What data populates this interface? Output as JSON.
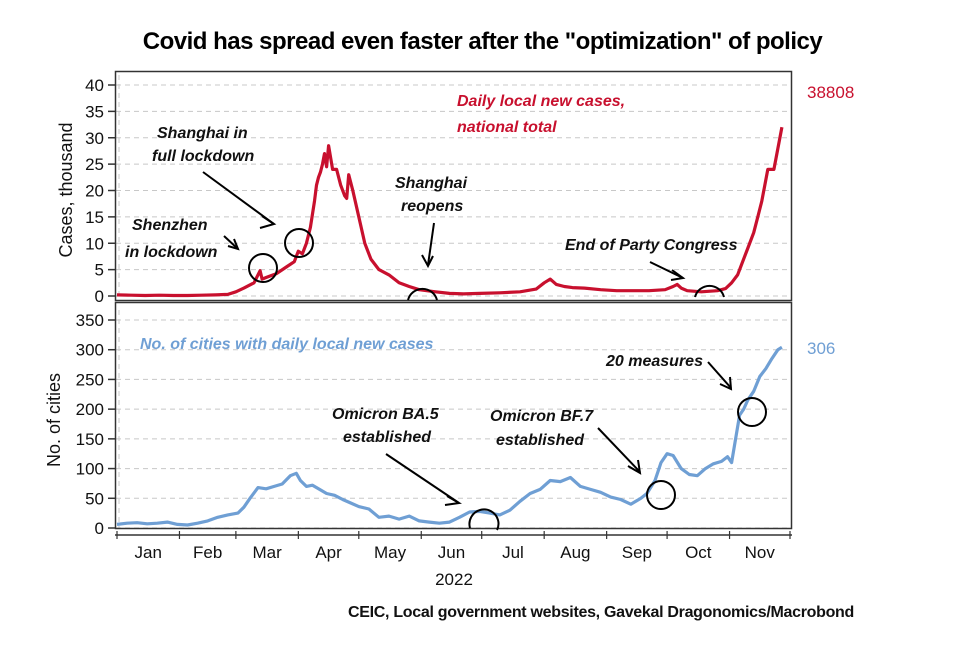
{
  "title": "Covid has spread even faster after the \"optimization\" of policy",
  "source": "CEIC, Local government websites, Gavekal Dragonomics/Macrobond",
  "colors": {
    "cases": "#c8102e",
    "cities": "#6f9fd4",
    "grid": "#c8c8c8",
    "axis": "#333333"
  },
  "chart_data": [
    {
      "type": "line",
      "panel": "top",
      "title": "",
      "ylabel": "Cases, thousand",
      "ylim": [
        0,
        40
      ],
      "yticks": [
        0,
        5,
        10,
        15,
        20,
        25,
        30,
        35,
        40
      ],
      "grid": true,
      "series_label": [
        "Daily local new cases,",
        "national total"
      ],
      "end_value_label": "38808",
      "series": [
        {
          "name": "Daily local new cases, national total",
          "x_days_since_jan1": [
            0,
            7,
            14,
            21,
            28,
            35,
            42,
            49,
            55,
            59,
            63,
            68,
            71,
            72,
            74,
            76,
            79,
            84,
            88,
            90,
            92,
            94,
            96,
            98,
            99,
            100,
            101,
            102,
            103,
            104,
            105,
            107,
            109,
            111,
            113,
            114,
            115,
            117,
            120,
            123,
            126,
            130,
            135,
            140,
            145,
            150,
            158,
            165,
            172,
            180,
            190,
            200,
            208,
            212,
            215,
            218,
            222,
            226,
            232,
            240,
            248,
            256,
            264,
            272,
            276,
            278,
            280,
            283,
            290,
            298,
            302,
            305,
            308,
            310,
            313,
            316,
            318,
            320,
            323,
            326,
            328,
            330
          ],
          "values": [
            0.2,
            0.15,
            0.1,
            0.15,
            0.1,
            0.1,
            0.15,
            0.2,
            0.3,
            0.8,
            1.5,
            2.5,
            4.8,
            3.2,
            3.5,
            3.8,
            4.2,
            5.5,
            6.5,
            8.5,
            8,
            10,
            13,
            18,
            21,
            22.5,
            23.5,
            25,
            27,
            24.5,
            28.5,
            24,
            24,
            21,
            19,
            18.5,
            23,
            20,
            15,
            10,
            7,
            5,
            4,
            2.5,
            1.8,
            1.2,
            0.8,
            0.5,
            0.4,
            0.5,
            0.6,
            0.8,
            1.3,
            2.5,
            3.2,
            2.2,
            1.8,
            1.6,
            1.5,
            1.2,
            1,
            1,
            1,
            1.2,
            1.8,
            2.2,
            1.5,
            1,
            0.8,
            1,
            1.4,
            2.5,
            4,
            6,
            9,
            12,
            15,
            18,
            24,
            24,
            28,
            32,
            38.8
          ]
        }
      ],
      "annotations": [
        {
          "text": [
            "Shanghai in",
            "full lockdown"
          ]
        },
        {
          "text": [
            "Shenzhen",
            "in lockdown"
          ]
        },
        {
          "text": [
            "Shanghai",
            "reopens"
          ]
        },
        {
          "text": [
            "End of Party Congress"
          ]
        }
      ]
    },
    {
      "type": "line",
      "panel": "bottom",
      "title": "",
      "ylabel": "No. of cities",
      "xlabel": "2022",
      "ylim": [
        0,
        350
      ],
      "yticks": [
        0,
        50,
        100,
        150,
        200,
        250,
        300,
        350
      ],
      "grid": true,
      "x_tick_labels": [
        "Jan",
        "Feb",
        "Mar",
        "Apr",
        "May",
        "Jun",
        "Jul",
        "Aug",
        "Sep",
        "Oct",
        "Nov"
      ],
      "series_label": "No. of cities with daily local new cases",
      "end_value_label": "306",
      "series": [
        {
          "name": "No. of cities with daily local new cases",
          "x_days_since_jan1": [
            0,
            5,
            10,
            15,
            20,
            25,
            30,
            35,
            40,
            45,
            50,
            55,
            60,
            63,
            66,
            70,
            74,
            78,
            82,
            86,
            89,
            91,
            94,
            97,
            100,
            104,
            108,
            112,
            116,
            120,
            125,
            130,
            135,
            140,
            145,
            150,
            155,
            160,
            165,
            170,
            175,
            180,
            185,
            190,
            195,
            200,
            205,
            210,
            215,
            220,
            225,
            230,
            235,
            240,
            245,
            250,
            255,
            260,
            263,
            267,
            270,
            273,
            276,
            280,
            284,
            288,
            292,
            296,
            300,
            303,
            305,
            307,
            309,
            311,
            313,
            316,
            319,
            322,
            325,
            328,
            330
          ],
          "values": [
            6,
            8,
            9,
            7,
            8,
            10,
            6,
            5,
            8,
            12,
            18,
            22,
            25,
            35,
            50,
            68,
            66,
            70,
            74,
            88,
            92,
            80,
            70,
            72,
            66,
            58,
            55,
            48,
            42,
            36,
            32,
            18,
            20,
            15,
            20,
            12,
            10,
            8,
            10,
            18,
            27,
            28,
            25,
            22,
            30,
            45,
            58,
            65,
            80,
            78,
            85,
            70,
            65,
            60,
            52,
            48,
            40,
            50,
            58,
            80,
            110,
            125,
            122,
            100,
            90,
            88,
            100,
            108,
            112,
            120,
            110,
            150,
            190,
            200,
            215,
            230,
            255,
            268,
            285,
            300,
            304
          ]
        }
      ],
      "annotations": [
        {
          "text": [
            "Omicron BA.5",
            "established"
          ]
        },
        {
          "text": [
            "Omicron BF.7",
            "established"
          ]
        },
        {
          "text": [
            "20 measures"
          ]
        }
      ]
    }
  ]
}
